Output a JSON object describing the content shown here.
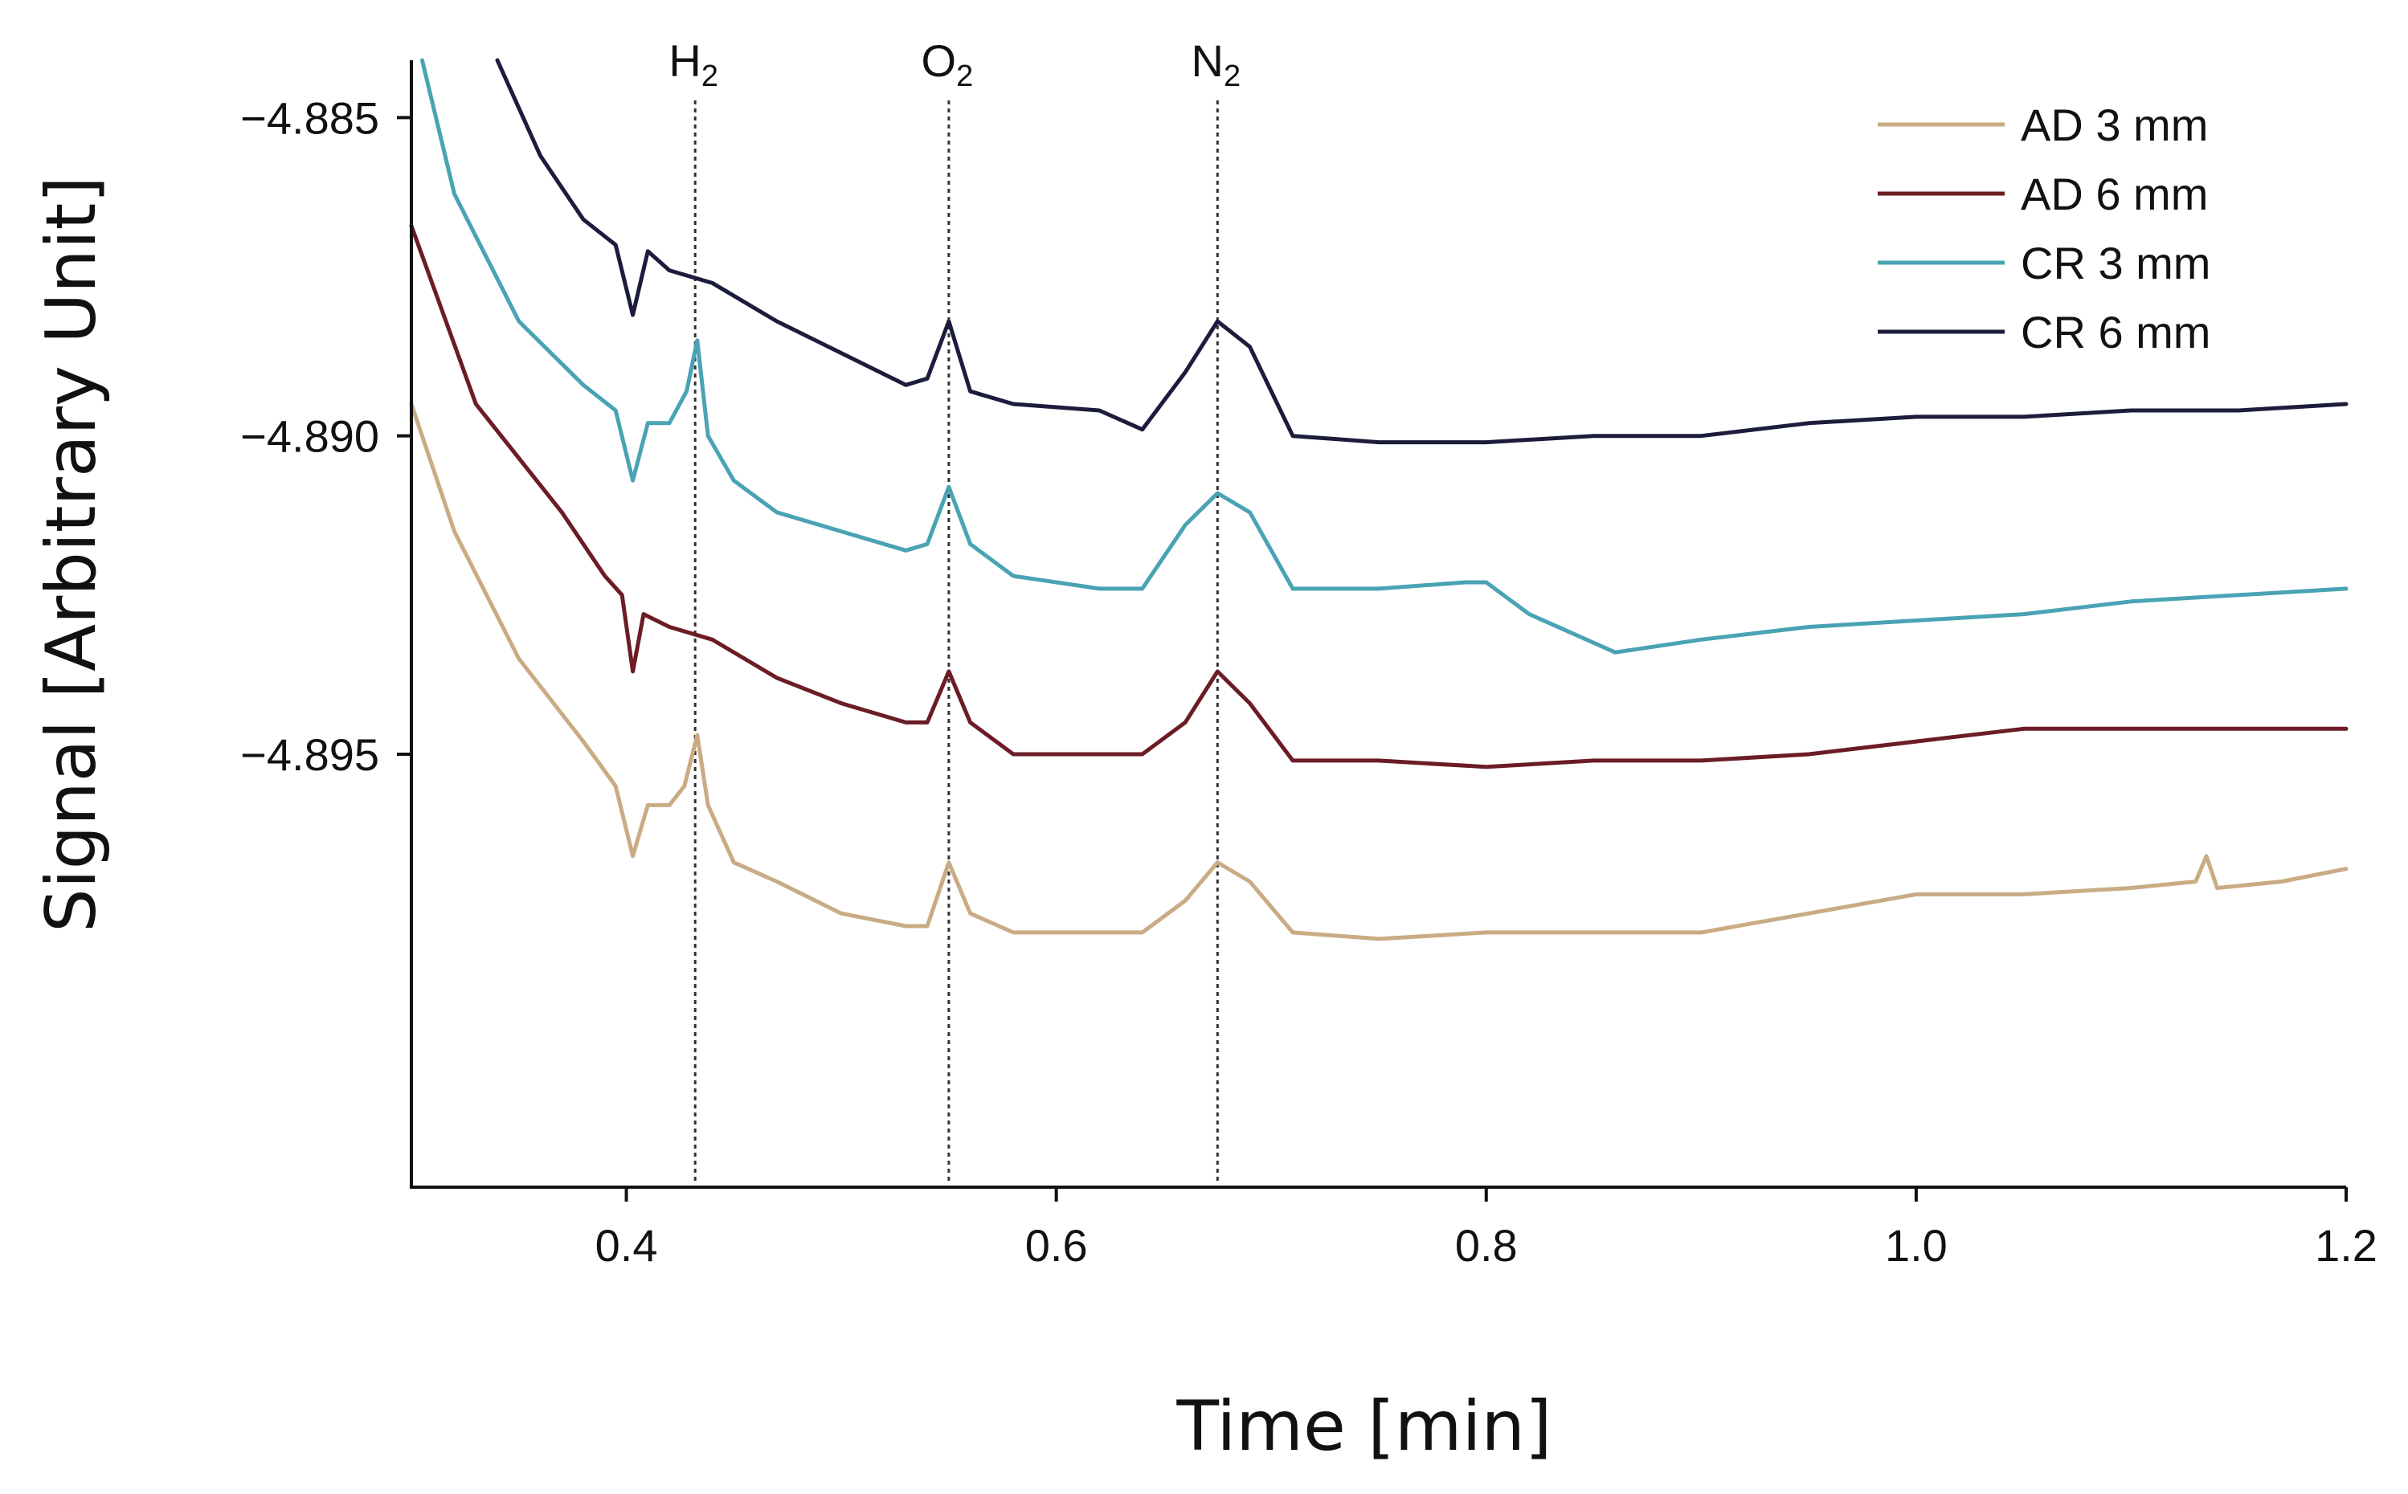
{
  "chart_data": {
    "type": "line",
    "title": "",
    "xlabel": "Time [min]",
    "ylabel": "Signal [Arbitrary Unit]",
    "xlim": [
      0.3,
      1.2
    ],
    "ylim": [
      -4.9018,
      -4.8841
    ],
    "x_ticks": [
      0.4,
      0.6,
      0.8,
      1.0,
      1.2
    ],
    "x_tick_labels": [
      "0.4",
      "0.6",
      "0.8",
      "1.0",
      "1.2"
    ],
    "y_ticks": [
      -4.885,
      -4.89,
      -4.895
    ],
    "y_tick_labels": [
      "−4.885",
      "−4.890",
      "−4.895"
    ],
    "grid": false,
    "legend_position": "top-right",
    "annotations": [
      {
        "x": 0.432,
        "label": "H",
        "subscript": "2"
      },
      {
        "x": 0.55,
        "label": "O",
        "subscript": "2"
      },
      {
        "x": 0.675,
        "label": "N",
        "subscript": "2"
      }
    ],
    "series": [
      {
        "name": "AD 3 mm",
        "color": "#c9ab84",
        "points": [
          [
            0.3,
            -4.8895
          ],
          [
            0.32,
            -4.8915
          ],
          [
            0.35,
            -4.8935
          ],
          [
            0.38,
            -4.8948
          ],
          [
            0.395,
            -4.8955
          ],
          [
            0.403,
            -4.8966
          ],
          [
            0.41,
            -4.8958
          ],
          [
            0.42,
            -4.8958
          ],
          [
            0.427,
            -4.8955
          ],
          [
            0.433,
            -4.8947
          ],
          [
            0.438,
            -4.8958
          ],
          [
            0.45,
            -4.8967
          ],
          [
            0.47,
            -4.897
          ],
          [
            0.5,
            -4.8975
          ],
          [
            0.53,
            -4.8977
          ],
          [
            0.54,
            -4.8977
          ],
          [
            0.55,
            -4.8967
          ],
          [
            0.56,
            -4.8975
          ],
          [
            0.58,
            -4.8978
          ],
          [
            0.6,
            -4.8978
          ],
          [
            0.62,
            -4.8978
          ],
          [
            0.64,
            -4.8978
          ],
          [
            0.66,
            -4.8973
          ],
          [
            0.675,
            -4.8967
          ],
          [
            0.69,
            -4.897
          ],
          [
            0.71,
            -4.8978
          ],
          [
            0.75,
            -4.8979
          ],
          [
            0.8,
            -4.8978
          ],
          [
            0.85,
            -4.8978
          ],
          [
            0.9,
            -4.8978
          ],
          [
            0.95,
            -4.8975
          ],
          [
            1.0,
            -4.8972
          ],
          [
            1.05,
            -4.8972
          ],
          [
            1.1,
            -4.8971
          ],
          [
            1.13,
            -4.897
          ],
          [
            1.135,
            -4.8966
          ],
          [
            1.14,
            -4.8971
          ],
          [
            1.17,
            -4.897
          ],
          [
            1.2,
            -4.8968
          ]
        ]
      },
      {
        "name": "AD 6 mm",
        "color": "#6b1c24",
        "points": [
          [
            0.3,
            -4.8867
          ],
          [
            0.33,
            -4.8895
          ],
          [
            0.37,
            -4.8912
          ],
          [
            0.39,
            -4.8922
          ],
          [
            0.398,
            -4.8925
          ],
          [
            0.403,
            -4.8937
          ],
          [
            0.408,
            -4.8928
          ],
          [
            0.42,
            -4.893
          ],
          [
            0.44,
            -4.8932
          ],
          [
            0.47,
            -4.8938
          ],
          [
            0.5,
            -4.8942
          ],
          [
            0.53,
            -4.8945
          ],
          [
            0.54,
            -4.8945
          ],
          [
            0.55,
            -4.8937
          ],
          [
            0.56,
            -4.8945
          ],
          [
            0.58,
            -4.895
          ],
          [
            0.61,
            -4.895
          ],
          [
            0.64,
            -4.895
          ],
          [
            0.66,
            -4.8945
          ],
          [
            0.675,
            -4.8937
          ],
          [
            0.69,
            -4.8942
          ],
          [
            0.71,
            -4.8951
          ],
          [
            0.75,
            -4.8951
          ],
          [
            0.8,
            -4.8952
          ],
          [
            0.85,
            -4.8951
          ],
          [
            0.9,
            -4.8951
          ],
          [
            0.95,
            -4.895
          ],
          [
            1.0,
            -4.8948
          ],
          [
            1.05,
            -4.8946
          ],
          [
            1.1,
            -4.8946
          ],
          [
            1.15,
            -4.8946
          ],
          [
            1.2,
            -4.8946
          ]
        ]
      },
      {
        "name": "CR 3 mm",
        "color": "#4aa3b4",
        "points": [
          [
            0.305,
            -4.8841
          ],
          [
            0.32,
            -4.8862
          ],
          [
            0.35,
            -4.8882
          ],
          [
            0.38,
            -4.8892
          ],
          [
            0.395,
            -4.8896
          ],
          [
            0.403,
            -4.8907
          ],
          [
            0.41,
            -4.8898
          ],
          [
            0.42,
            -4.8898
          ],
          [
            0.428,
            -4.8893
          ],
          [
            0.433,
            -4.8885
          ],
          [
            0.438,
            -4.89
          ],
          [
            0.45,
            -4.8907
          ],
          [
            0.47,
            -4.8912
          ],
          [
            0.5,
            -4.8915
          ],
          [
            0.53,
            -4.8918
          ],
          [
            0.54,
            -4.8917
          ],
          [
            0.55,
            -4.8908
          ],
          [
            0.56,
            -4.8917
          ],
          [
            0.58,
            -4.8922
          ],
          [
            0.62,
            -4.8924
          ],
          [
            0.64,
            -4.8924
          ],
          [
            0.66,
            -4.8914
          ],
          [
            0.675,
            -4.8909
          ],
          [
            0.69,
            -4.8912
          ],
          [
            0.71,
            -4.8924
          ],
          [
            0.75,
            -4.8924
          ],
          [
            0.79,
            -4.8923
          ],
          [
            0.8,
            -4.8923
          ],
          [
            0.82,
            -4.8928
          ],
          [
            0.86,
            -4.8934
          ],
          [
            0.9,
            -4.8932
          ],
          [
            0.95,
            -4.893
          ],
          [
            1.0,
            -4.8929
          ],
          [
            1.05,
            -4.8928
          ],
          [
            1.1,
            -4.8926
          ],
          [
            1.15,
            -4.8925
          ],
          [
            1.2,
            -4.8924
          ]
        ]
      },
      {
        "name": "CR 6 mm",
        "color": "#1c1c3c",
        "points": [
          [
            0.34,
            -4.8841
          ],
          [
            0.36,
            -4.8856
          ],
          [
            0.38,
            -4.8866
          ],
          [
            0.395,
            -4.887
          ],
          [
            0.403,
            -4.8881
          ],
          [
            0.41,
            -4.8871
          ],
          [
            0.42,
            -4.8874
          ],
          [
            0.44,
            -4.8876
          ],
          [
            0.47,
            -4.8882
          ],
          [
            0.5,
            -4.8887
          ],
          [
            0.53,
            -4.8892
          ],
          [
            0.54,
            -4.8891
          ],
          [
            0.55,
            -4.8882
          ],
          [
            0.56,
            -4.8893
          ],
          [
            0.58,
            -4.8895
          ],
          [
            0.62,
            -4.8896
          ],
          [
            0.64,
            -4.8899
          ],
          [
            0.66,
            -4.889
          ],
          [
            0.675,
            -4.8882
          ],
          [
            0.69,
            -4.8886
          ],
          [
            0.71,
            -4.89
          ],
          [
            0.75,
            -4.8901
          ],
          [
            0.8,
            -4.8901
          ],
          [
            0.85,
            -4.89
          ],
          [
            0.9,
            -4.89
          ],
          [
            0.95,
            -4.8898
          ],
          [
            1.0,
            -4.8897
          ],
          [
            1.05,
            -4.8897
          ],
          [
            1.1,
            -4.8896
          ],
          [
            1.15,
            -4.8896
          ],
          [
            1.2,
            -4.8895
          ]
        ]
      }
    ]
  }
}
